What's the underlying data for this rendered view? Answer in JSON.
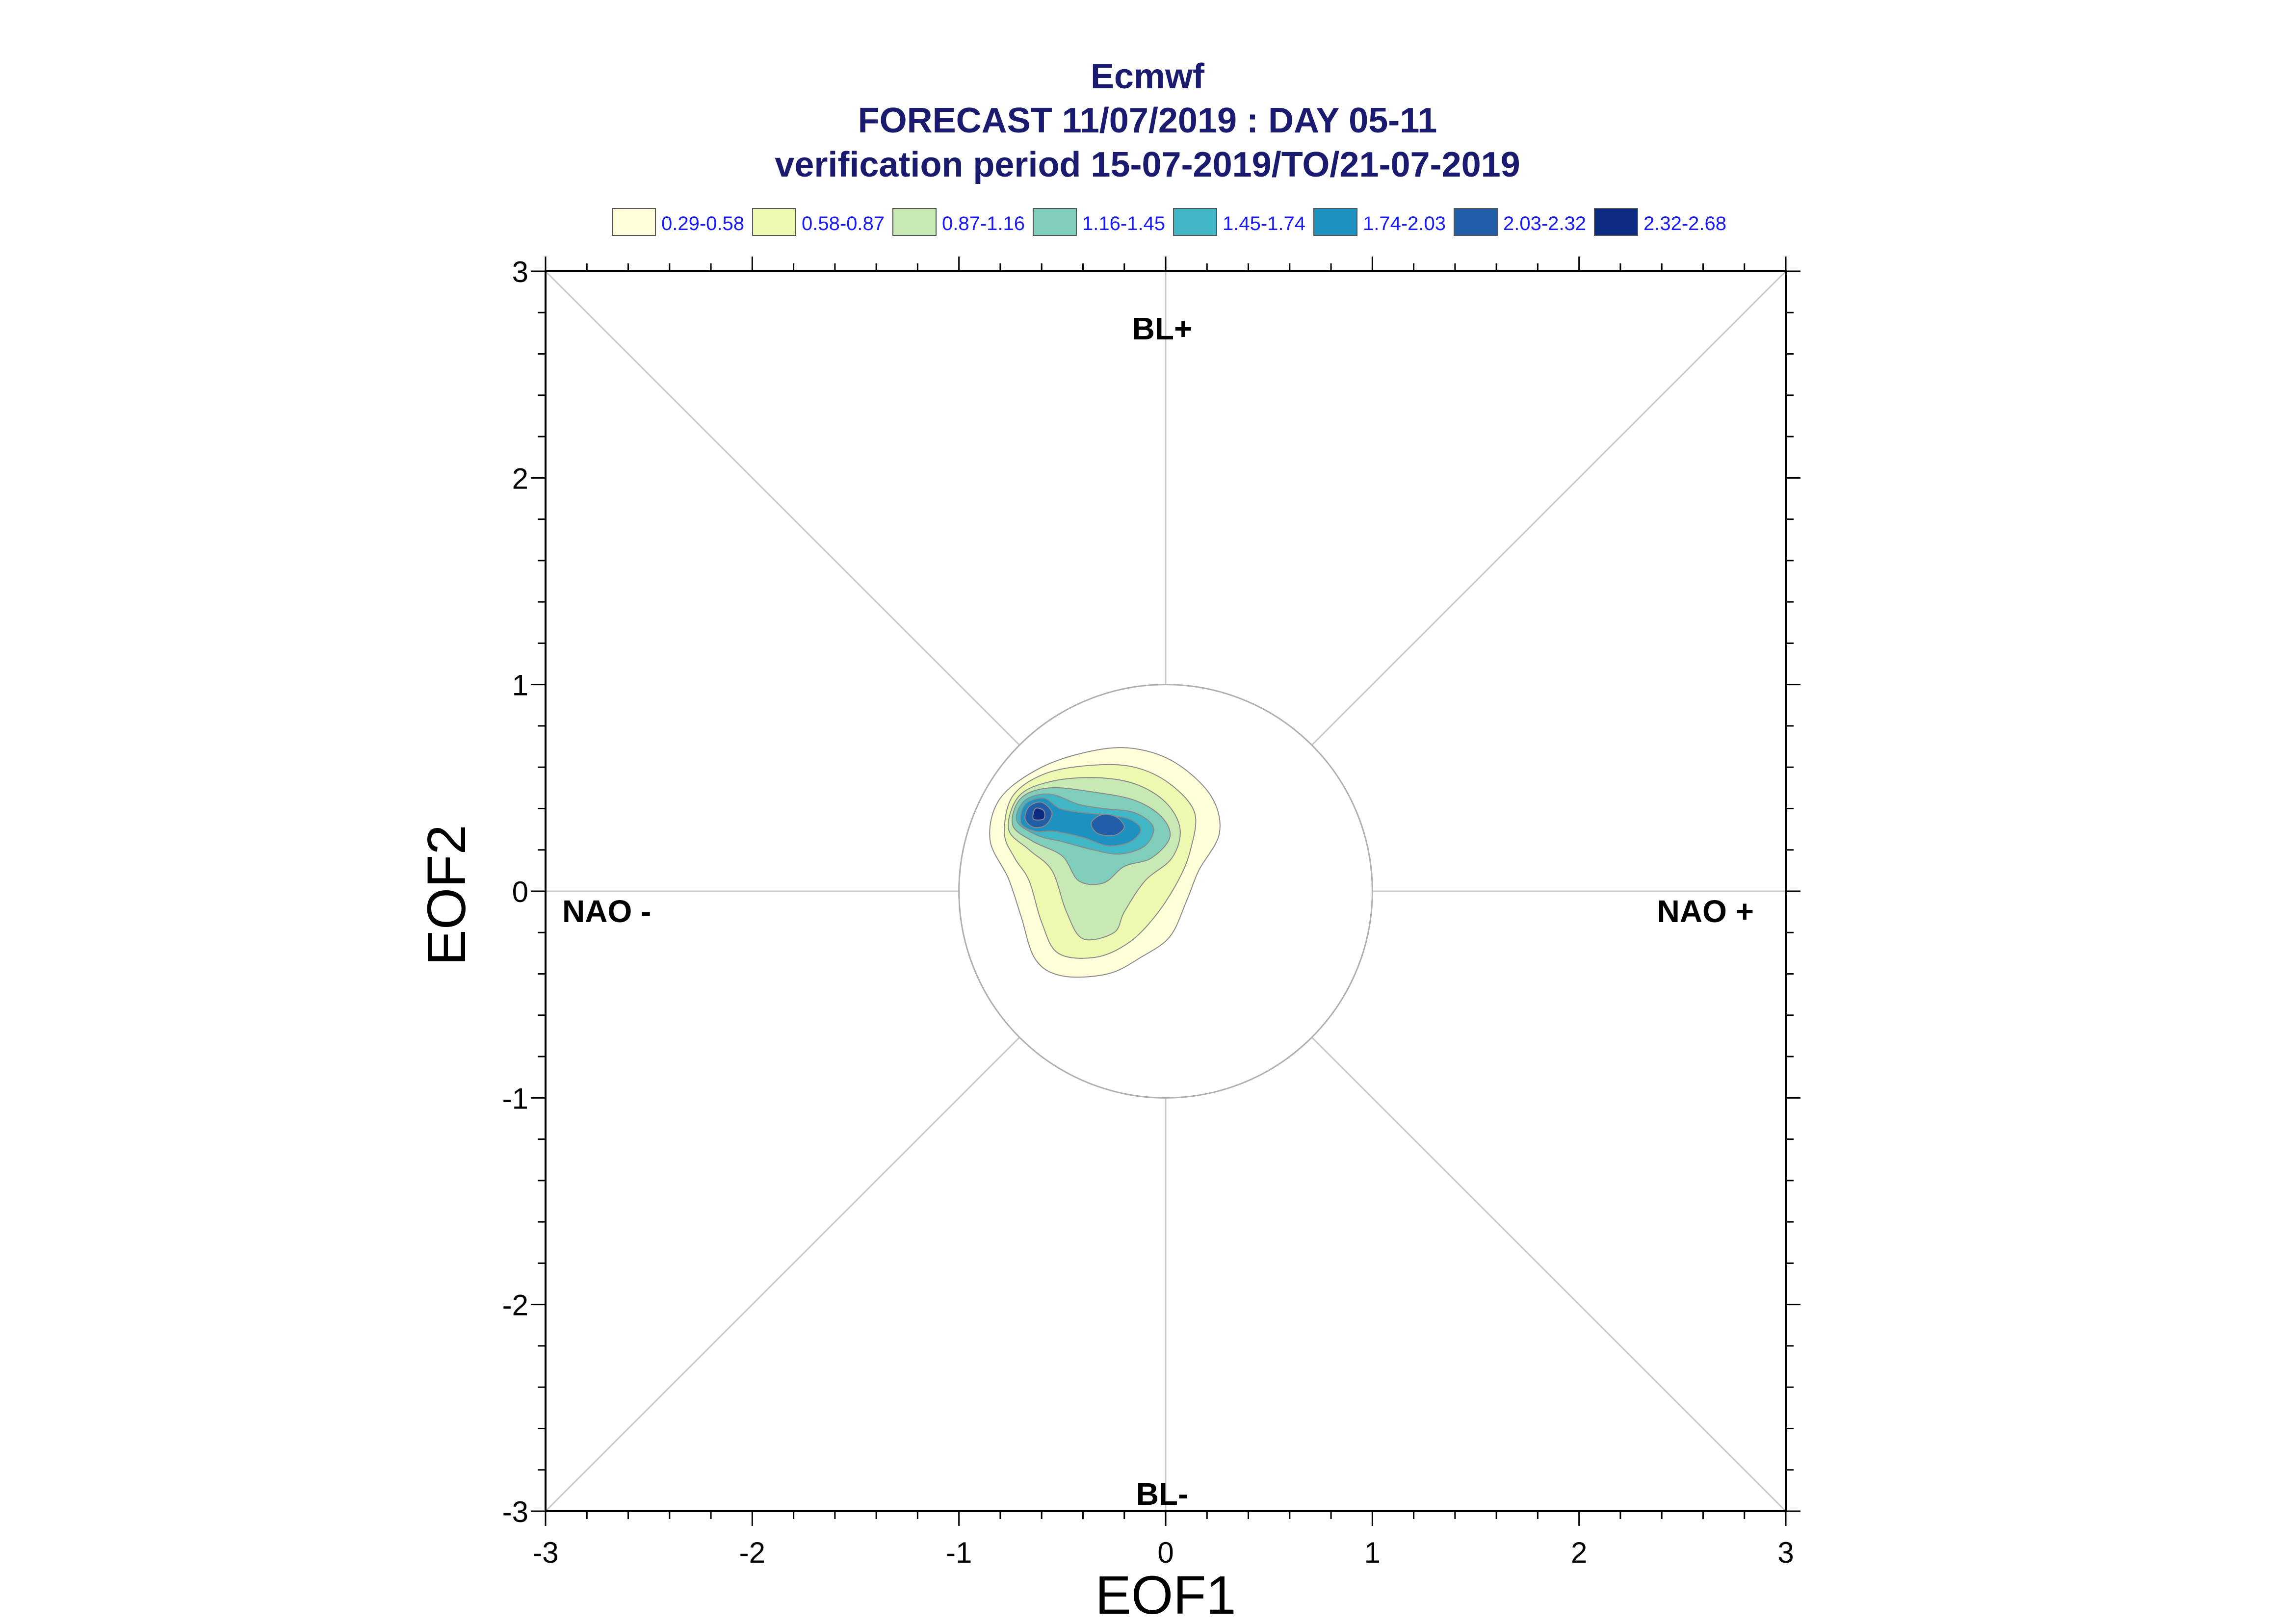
{
  "chart_data": {
    "type": "contour",
    "title_lines": [
      "Ecmwf",
      "FORECAST 11/07/2019 : DAY 05-11",
      "verification period 15-07-2019/TO/21-07-2019"
    ],
    "xlabel": "EOF1",
    "ylabel": "EOF2",
    "xlim": [
      -3,
      3
    ],
    "ylim": [
      -3,
      3
    ],
    "xticks": [
      "-3",
      "-2",
      "-1",
      "0",
      "1",
      "2",
      "3"
    ],
    "yticks": [
      "-3",
      "-2",
      "-1",
      "0",
      "1",
      "2",
      "3"
    ],
    "region_labels": {
      "top": "BL+",
      "bottom": "BL-",
      "left": "NAO -",
      "right": "NAO +"
    },
    "reference_circle_radius": 1,
    "legend": [
      {
        "label": "0.29-0.58",
        "color": "#ffffd9"
      },
      {
        "label": "0.58-0.87",
        "color": "#edf8b1"
      },
      {
        "label": "0.87-1.16",
        "color": "#c7e9b4"
      },
      {
        "label": "1.16-1.45",
        "color": "#7fcdbb"
      },
      {
        "label": "1.45-1.74",
        "color": "#41b6c4"
      },
      {
        "label": "1.74-2.03",
        "color": "#1d91c0"
      },
      {
        "label": "2.03-2.32",
        "color": "#225ea8"
      },
      {
        "label": "2.32-2.68",
        "color": "#0c2c84"
      }
    ],
    "density_levels": [
      {
        "level": "0.29-0.58",
        "points": [
          [
            -0.85,
            0.25
          ],
          [
            -0.8,
            0.45
          ],
          [
            -0.6,
            0.6
          ],
          [
            -0.35,
            0.68
          ],
          [
            -0.15,
            0.69
          ],
          [
            0.05,
            0.62
          ],
          [
            0.22,
            0.46
          ],
          [
            0.26,
            0.28
          ],
          [
            0.16,
            0.1
          ],
          [
            0.1,
            -0.05
          ],
          [
            0.02,
            -0.22
          ],
          [
            -0.12,
            -0.32
          ],
          [
            -0.28,
            -0.4
          ],
          [
            -0.5,
            -0.41
          ],
          [
            -0.63,
            -0.33
          ],
          [
            -0.7,
            -0.12
          ],
          [
            -0.76,
            0.06
          ]
        ]
      },
      {
        "level": "0.58-0.87",
        "points": [
          [
            -0.78,
            0.28
          ],
          [
            -0.74,
            0.46
          ],
          [
            -0.58,
            0.57
          ],
          [
            -0.35,
            0.61
          ],
          [
            -0.15,
            0.6
          ],
          [
            0.02,
            0.52
          ],
          [
            0.14,
            0.38
          ],
          [
            0.12,
            0.2
          ],
          [
            0.06,
            0.05
          ],
          [
            -0.05,
            -0.12
          ],
          [
            -0.18,
            -0.25
          ],
          [
            -0.34,
            -0.32
          ],
          [
            -0.52,
            -0.3
          ],
          [
            -0.6,
            -0.15
          ],
          [
            -0.66,
            0.05
          ],
          [
            -0.73,
            0.16
          ]
        ]
      },
      {
        "level": "0.87-1.16",
        "points": [
          [
            -0.76,
            0.3
          ],
          [
            -0.71,
            0.46
          ],
          [
            -0.56,
            0.53
          ],
          [
            -0.35,
            0.55
          ],
          [
            -0.15,
            0.52
          ],
          [
            0.0,
            0.43
          ],
          [
            0.07,
            0.3
          ],
          [
            0.03,
            0.16
          ],
          [
            -0.1,
            0.05
          ],
          [
            -0.2,
            -0.1
          ],
          [
            -0.25,
            -0.2
          ],
          [
            -0.4,
            -0.23
          ],
          [
            -0.48,
            -0.1
          ],
          [
            -0.55,
            0.1
          ],
          [
            -0.66,
            0.2
          ]
        ]
      },
      {
        "level": "1.16-1.45",
        "points": [
          [
            -0.74,
            0.32
          ],
          [
            -0.7,
            0.45
          ],
          [
            -0.56,
            0.5
          ],
          [
            -0.35,
            0.48
          ],
          [
            -0.15,
            0.44
          ],
          [
            -0.02,
            0.36
          ],
          [
            0.02,
            0.26
          ],
          [
            -0.07,
            0.16
          ],
          [
            -0.2,
            0.12
          ],
          [
            -0.3,
            0.04
          ],
          [
            -0.42,
            0.05
          ],
          [
            -0.5,
            0.17
          ],
          [
            -0.64,
            0.24
          ]
        ]
      },
      {
        "level": "1.45-1.74",
        "points": [
          [
            -0.72,
            0.34
          ],
          [
            -0.68,
            0.44
          ],
          [
            -0.56,
            0.47
          ],
          [
            -0.42,
            0.42
          ],
          [
            -0.3,
            0.4
          ],
          [
            -0.15,
            0.38
          ],
          [
            -0.06,
            0.31
          ],
          [
            -0.1,
            0.22
          ],
          [
            -0.22,
            0.18
          ],
          [
            -0.35,
            0.2
          ],
          [
            -0.5,
            0.24
          ],
          [
            -0.62,
            0.27
          ]
        ]
      },
      {
        "level": "1.74-2.03",
        "points": [
          [
            -0.7,
            0.33
          ],
          [
            -0.68,
            0.42
          ],
          [
            -0.59,
            0.45
          ],
          [
            -0.51,
            0.4
          ],
          [
            -0.4,
            0.38
          ],
          [
            -0.3,
            0.37
          ],
          [
            -0.18,
            0.35
          ],
          [
            -0.12,
            0.3
          ],
          [
            -0.17,
            0.24
          ],
          [
            -0.28,
            0.22
          ],
          [
            -0.4,
            0.26
          ],
          [
            -0.54,
            0.29
          ],
          [
            -0.63,
            0.29
          ]
        ]
      },
      {
        "level": "2.03-2.32",
        "points": [
          [
            -0.68,
            0.35
          ],
          [
            -0.66,
            0.41
          ],
          [
            -0.6,
            0.43
          ],
          [
            -0.55,
            0.38
          ],
          [
            -0.58,
            0.32
          ],
          [
            -0.64,
            0.31
          ]
        ]
      },
      {
        "level": "2.03-2.32",
        "points": [
          [
            -0.36,
            0.33
          ],
          [
            -0.31,
            0.37
          ],
          [
            -0.24,
            0.36
          ],
          [
            -0.2,
            0.31
          ],
          [
            -0.25,
            0.27
          ],
          [
            -0.33,
            0.28
          ]
        ]
      },
      {
        "level": "2.32-2.68",
        "points": [
          [
            -0.64,
            0.35
          ],
          [
            -0.63,
            0.4
          ],
          [
            -0.59,
            0.39
          ],
          [
            -0.59,
            0.35
          ]
        ]
      }
    ]
  }
}
